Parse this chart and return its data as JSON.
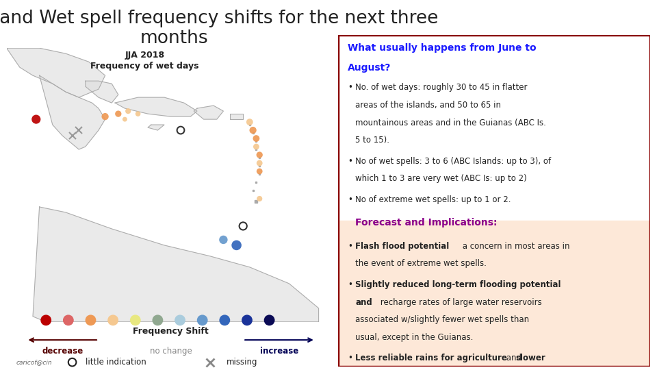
{
  "title_line1": "Wet days and Wet spell frequency shifts for the next three",
  "title_line2": "months",
  "title_color": "#222222",
  "title_fontsize": 19,
  "left_subtitle": "JJA 2018",
  "left_subtitle2": "Frequency of wet days",
  "right_box_border": "#8b0000",
  "right_box_bg_top": "#ffffff",
  "right_box_bg_bottom": "#fde8d8",
  "header_color": "#1a1aff",
  "forecast_color": "#8b008b",
  "colorbar_colors": [
    "#bb0000",
    "#dd6666",
    "#ee9955",
    "#f5c890",
    "#e8e880",
    "#90a890",
    "#aaccdd",
    "#6699cc",
    "#3366bb",
    "#1a3399",
    "#0a0a55"
  ],
  "decrease_color": "#550000",
  "increase_color": "#000055",
  "caricof_text": "caricof@cin"
}
